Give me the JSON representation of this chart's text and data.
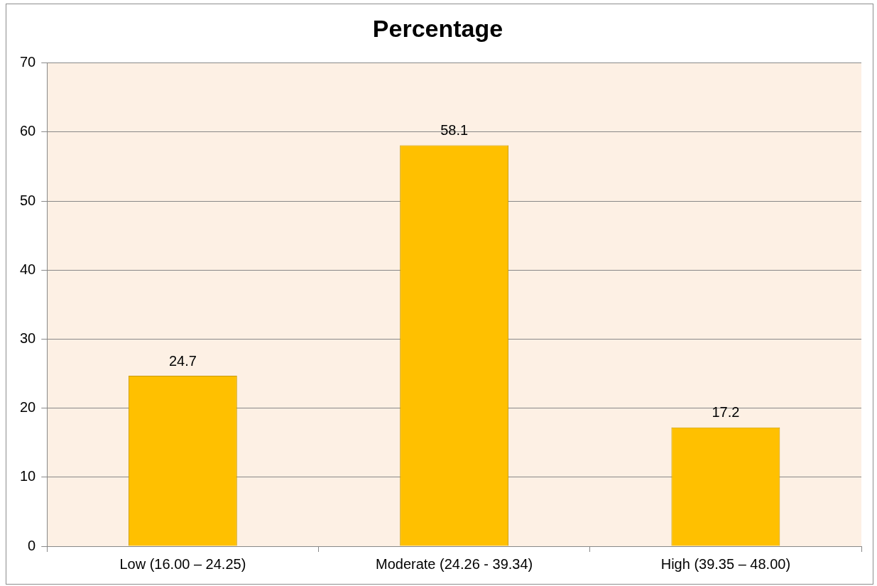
{
  "chart_data": {
    "type": "bar",
    "title": "Percentage",
    "categories": [
      "Low (16.00 – 24.25)",
      "Moderate (24.26 - 39.34)",
      "High (39.35 – 48.00)"
    ],
    "values": [
      24.7,
      58.1,
      17.2
    ],
    "color": "#ffc000",
    "ylim": [
      0,
      70
    ],
    "yticks": [
      0,
      10,
      20,
      30,
      40,
      50,
      60,
      70
    ],
    "grid": "y",
    "data_labels": true,
    "legend": false
  }
}
